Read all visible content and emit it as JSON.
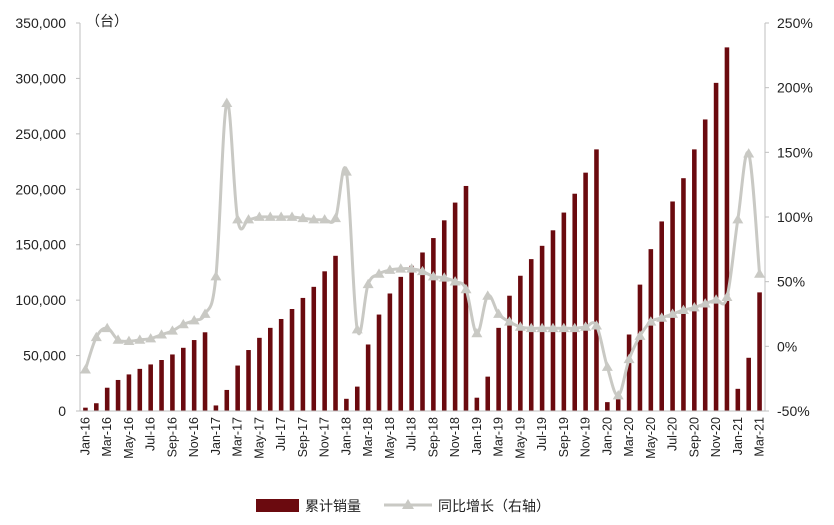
{
  "chart_data": {
    "type": "bar+line",
    "unit_label": "（台）",
    "x": [
      "Jan-16",
      "Feb-16",
      "Mar-16",
      "Apr-16",
      "May-16",
      "Jun-16",
      "Jul-16",
      "Aug-16",
      "Sep-16",
      "Oct-16",
      "Nov-16",
      "Dec-16",
      "Jan-17",
      "Feb-17",
      "Mar-17",
      "Apr-17",
      "May-17",
      "Jun-17",
      "Jul-17",
      "Aug-17",
      "Sep-17",
      "Oct-17",
      "Nov-17",
      "Dec-17",
      "Jan-18",
      "Feb-18",
      "Mar-18",
      "Apr-18",
      "May-18",
      "Jun-18",
      "Jul-18",
      "Aug-18",
      "Sep-18",
      "Oct-18",
      "Nov-18",
      "Dec-18",
      "Jan-19",
      "Feb-19",
      "Mar-19",
      "Apr-19",
      "May-19",
      "Jun-19",
      "Jul-19",
      "Aug-19",
      "Sep-19",
      "Oct-19",
      "Nov-19",
      "Dec-19",
      "Jan-20",
      "Feb-20",
      "Mar-20",
      "Apr-20",
      "May-20",
      "Jun-20",
      "Jul-20",
      "Aug-20",
      "Sep-20",
      "Oct-20",
      "Nov-20",
      "Dec-20",
      "Jan-21",
      "Feb-21",
      "Mar-21"
    ],
    "x_tick_labels": [
      "Jan-16",
      "Mar-16",
      "May-16",
      "Jul-16",
      "Sep-16",
      "Nov-16",
      "Jan-17",
      "Mar-17",
      "May-17",
      "Jul-17",
      "Sep-17",
      "Nov-17",
      "Jan-18",
      "Mar-18",
      "May-18",
      "Jul-18",
      "Sep-18",
      "Nov-18",
      "Jan-19",
      "Mar-19",
      "May-19",
      "Jul-19",
      "Sep-19",
      "Nov-19",
      "Jan-20",
      "Mar-20",
      "May-20",
      "Jul-20",
      "Sep-20",
      "Nov-20",
      "Jan-21",
      "Mar-21"
    ],
    "series": [
      {
        "name": "累计销量",
        "type": "bar",
        "axis": "left",
        "color": "#6b0a0f",
        "values": [
          3000,
          7000,
          21000,
          28000,
          33000,
          38000,
          42000,
          46000,
          51000,
          57000,
          64000,
          71000,
          5000,
          19000,
          41000,
          55000,
          66000,
          75000,
          83000,
          92000,
          102000,
          112000,
          126000,
          140000,
          11000,
          22000,
          60000,
          87000,
          106000,
          121000,
          131000,
          143000,
          156000,
          172000,
          188000,
          203000,
          12000,
          31000,
          75000,
          104000,
          122000,
          137000,
          149000,
          163000,
          179000,
          196000,
          215000,
          236000,
          8000,
          14000,
          69000,
          114000,
          146000,
          171000,
          189000,
          210000,
          236000,
          263000,
          296000,
          328000,
          20000,
          48000,
          107000
        ]
      },
      {
        "name": "同比增长（右轴）",
        "type": "line",
        "axis": "right",
        "color": "#c9c9c4",
        "values": [
          -18,
          7,
          14,
          5,
          4,
          5,
          6,
          9,
          12,
          17,
          20,
          25,
          54,
          188,
          98,
          98,
          100,
          100,
          100,
          100,
          99,
          98,
          98,
          99,
          135,
          13,
          48,
          56,
          59,
          60,
          60,
          58,
          54,
          53,
          50,
          44,
          10,
          39,
          25,
          19,
          15,
          14,
          14,
          14,
          14,
          14,
          15,
          16,
          -16,
          -38,
          -10,
          8,
          19,
          22,
          25,
          28,
          30,
          33,
          36,
          38,
          98,
          149,
          56
        ]
      }
    ],
    "left_axis": {
      "min": 0,
      "max": 350000,
      "ticks": [
        "0",
        "50,000",
        "100,000",
        "150,000",
        "200,000",
        "250,000",
        "300,000",
        "350,000"
      ]
    },
    "right_axis": {
      "min": -50,
      "max": 250,
      "ticks": [
        "-50%",
        "0%",
        "50%",
        "100%",
        "150%",
        "200%",
        "250%"
      ]
    },
    "grid": false,
    "legend_position": "bottom"
  }
}
